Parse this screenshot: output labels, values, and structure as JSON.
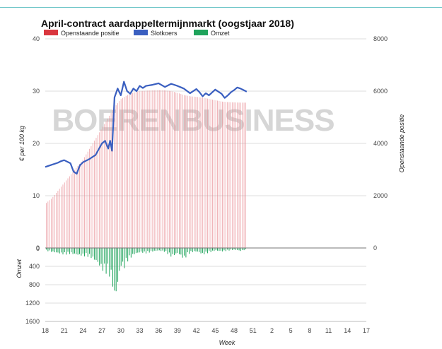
{
  "chart_data": {
    "type": "bar+line",
    "title": "April-contract aardappeltermijnmarkt (oogstjaar 2018)",
    "legend": [
      {
        "name": "Openstaande positie",
        "color": "#d9363e"
      },
      {
        "name": "Slotkoers",
        "color": "#3a5fc0"
      },
      {
        "name": "Omzet",
        "color": "#1fa35b"
      }
    ],
    "legend_placement": "top-left",
    "watermark": "BOERENBUSINESS",
    "xlabel": "Week",
    "x_ticks": [
      "18",
      "21",
      "24",
      "27",
      "30",
      "33",
      "36",
      "39",
      "42",
      "45",
      "48",
      "51",
      "2",
      "5",
      "8",
      "11",
      "14",
      "17"
    ],
    "y_left_label": "€ per 100 kg",
    "y_left_ticks": [
      "0",
      "10",
      "20",
      "30",
      "40"
    ],
    "y_left_range": [
      0,
      40
    ],
    "y_right_label": "Openstaande positie",
    "y_right_ticks": [
      "0",
      "2000",
      "4000",
      "6000",
      "8000"
    ],
    "y_right_range": [
      0,
      8000
    ],
    "y_bottom_label": "Omzet",
    "y_bottom_ticks": [
      "0",
      "400",
      "800",
      "1200",
      "1600"
    ],
    "y_bottom_range": [
      0,
      1600
    ],
    "grid": true,
    "weeks_with_data": [
      18,
      50
    ],
    "open_interest": {
      "weeks": [
        18,
        19,
        20,
        21,
        22,
        23,
        24,
        25,
        26,
        27,
        28,
        29,
        30,
        31,
        32,
        33,
        34,
        35,
        36,
        37,
        38,
        39,
        40,
        41,
        42,
        43,
        44,
        45,
        46,
        47,
        48,
        49,
        50
      ],
      "values": [
        1700,
        1900,
        2200,
        2500,
        2800,
        3100,
        3400,
        3800,
        4200,
        4600,
        5000,
        5400,
        5700,
        5850,
        5950,
        6000,
        6020,
        6030,
        6040,
        6030,
        6000,
        5930,
        5850,
        5800,
        5780,
        5750,
        5700,
        5650,
        5600,
        5580,
        5570,
        5560,
        5560
      ]
    },
    "slotkoers": {
      "weeks": [
        18,
        19,
        20,
        20.5,
        21,
        22,
        22.5,
        23,
        23.5,
        24,
        25,
        26,
        27,
        27.5,
        28,
        28.3,
        28.6,
        29,
        29.5,
        30,
        30.5,
        31,
        31.5,
        32,
        32.5,
        33,
        33.5,
        34,
        35,
        36,
        37,
        38,
        39,
        40,
        41,
        42,
        42.5,
        43,
        43.5,
        44,
        45,
        46,
        46.5,
        47,
        47.5,
        48,
        48.5,
        49,
        49.5,
        50
      ],
      "values": [
        15.5,
        15.9,
        16.3,
        16.6,
        16.8,
        16.2,
        14.6,
        14.2,
        15.8,
        16.4,
        17.0,
        17.8,
        20.0,
        20.5,
        19.0,
        20.5,
        18.6,
        28.8,
        30.5,
        29.2,
        31.8,
        30.0,
        29.5,
        30.5,
        30.0,
        31.0,
        30.6,
        31.0,
        31.2,
        31.5,
        30.8,
        31.4,
        31.0,
        30.5,
        29.6,
        30.4,
        29.8,
        29.0,
        29.6,
        29.2,
        30.3,
        29.5,
        28.7,
        29.2,
        29.8,
        30.2,
        30.7,
        30.5,
        30.2,
        29.9
      ]
    },
    "omzet": {
      "weeks": [
        18,
        19,
        20,
        21,
        22,
        23,
        24,
        25,
        26,
        27,
        28,
        28.5,
        29,
        29.5,
        30,
        30.5,
        31,
        32,
        33,
        34,
        35,
        36,
        37,
        38,
        39,
        40,
        41,
        42,
        43,
        44,
        45,
        46,
        47,
        48,
        49,
        50
      ],
      "values": [
        60,
        90,
        120,
        150,
        130,
        160,
        180,
        200,
        300,
        500,
        600,
        700,
        1230,
        800,
        400,
        450,
        300,
        150,
        100,
        120,
        80,
        60,
        90,
        200,
        120,
        250,
        100,
        80,
        150,
        100,
        60,
        80,
        60,
        40,
        70,
        30
      ]
    }
  }
}
